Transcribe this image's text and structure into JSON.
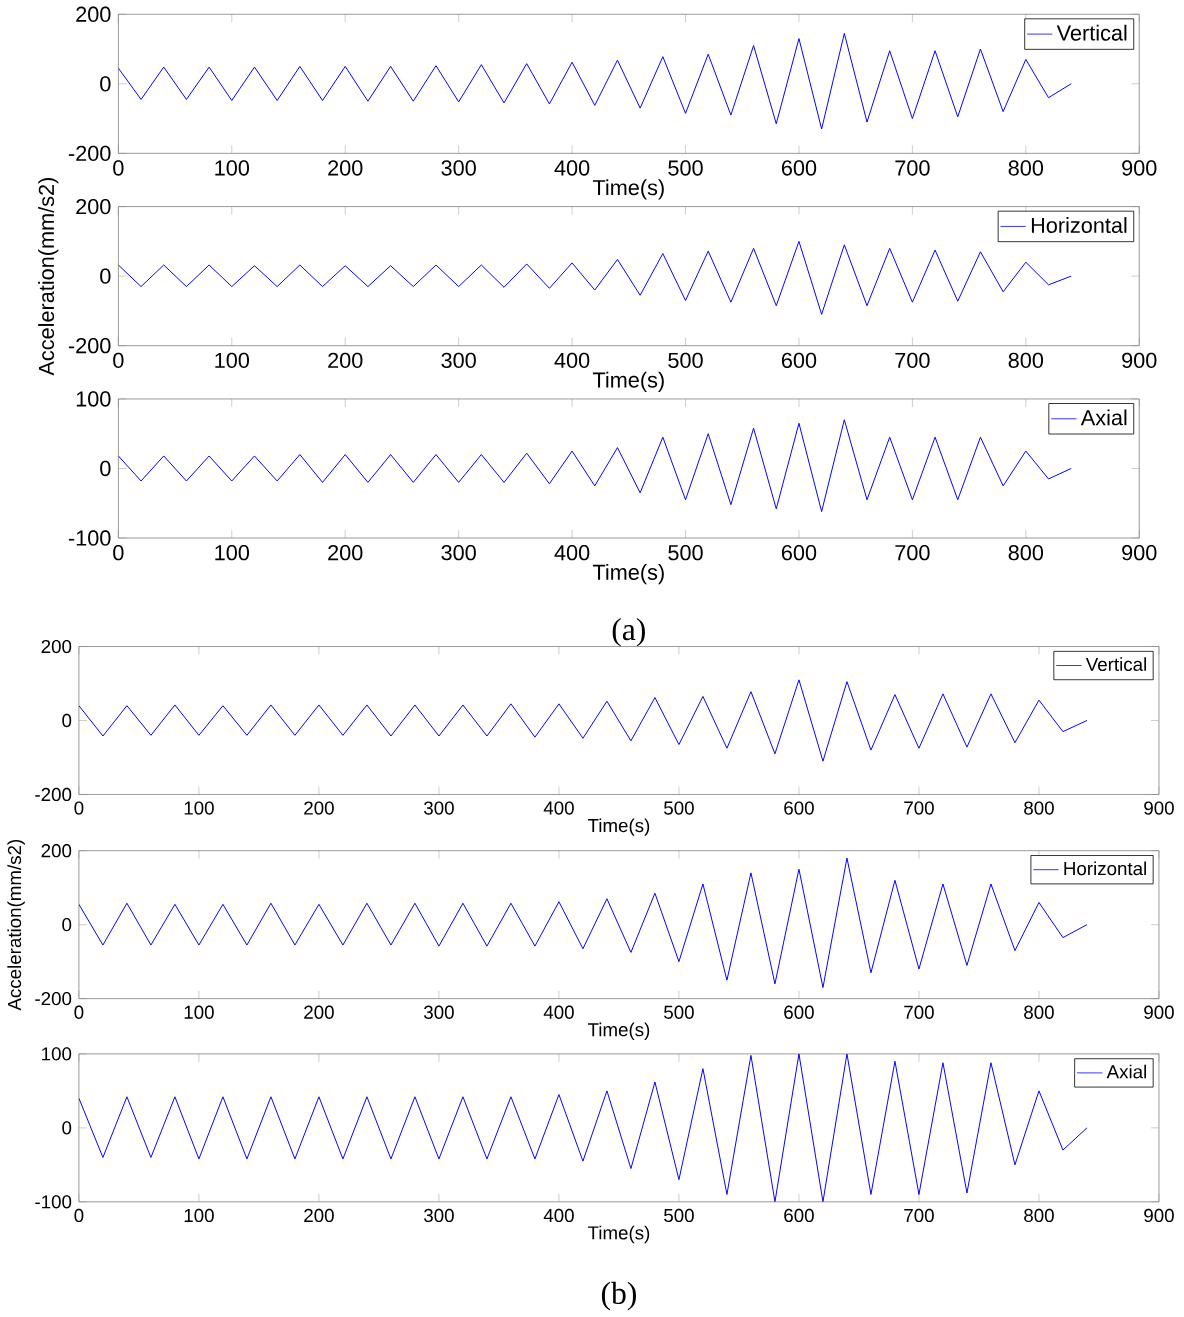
{
  "chart_data": [
    {
      "type": "line",
      "xlabel": "Time(s)",
      "xlim": [
        0,
        900
      ],
      "xticks": [
        0,
        100,
        200,
        300,
        400,
        500,
        600,
        700,
        800,
        900
      ],
      "ylim": [
        -200,
        200
      ],
      "yticks": [
        -200,
        0,
        200
      ],
      "legend": "top right",
      "x": [
        0,
        20,
        40,
        60,
        80,
        100,
        120,
        140,
        160,
        180,
        200,
        220,
        240,
        260,
        280,
        300,
        320,
        340,
        360,
        380,
        400,
        420,
        440,
        460,
        480,
        500,
        520,
        540,
        560,
        580,
        600,
        620,
        640,
        660,
        680,
        700,
        720,
        740,
        760,
        780,
        800,
        820,
        840
      ],
      "series": [
        {
          "name": "Vertical",
          "color": "#0000ff",
          "values": [
            45,
            -45,
            48,
            -45,
            48,
            -48,
            48,
            -48,
            50,
            -48,
            50,
            -50,
            50,
            -50,
            52,
            -52,
            55,
            -55,
            58,
            -58,
            62,
            -62,
            68,
            -70,
            78,
            -85,
            85,
            -90,
            110,
            -115,
            130,
            -130,
            145,
            -110,
            95,
            -100,
            95,
            -95,
            100,
            -80,
            70,
            -40,
            0
          ]
        }
      ]
    },
    {
      "type": "line",
      "xlabel": "Time(s)",
      "ylabel": "Acceleration(mm/s2)",
      "xlim": [
        0,
        900
      ],
      "xticks": [
        0,
        100,
        200,
        300,
        400,
        500,
        600,
        700,
        800,
        900
      ],
      "ylim": [
        -200,
        200
      ],
      "yticks": [
        -200,
        0,
        200
      ],
      "legend": "top right",
      "x": [
        0,
        20,
        40,
        60,
        80,
        100,
        120,
        140,
        160,
        180,
        200,
        220,
        240,
        260,
        280,
        300,
        320,
        340,
        360,
        380,
        400,
        420,
        440,
        460,
        480,
        500,
        520,
        540,
        560,
        580,
        600,
        620,
        640,
        660,
        680,
        700,
        720,
        740,
        760,
        780,
        800,
        820,
        840
      ],
      "series": [
        {
          "name": "Horizontal",
          "color": "#0000ff",
          "values": [
            32,
            -30,
            32,
            -30,
            32,
            -30,
            30,
            -30,
            32,
            -30,
            30,
            -30,
            30,
            -30,
            32,
            -30,
            32,
            -32,
            35,
            -35,
            38,
            -40,
            48,
            -55,
            65,
            -70,
            72,
            -75,
            80,
            -85,
            100,
            -110,
            90,
            -85,
            80,
            -75,
            75,
            -72,
            70,
            -45,
            40,
            -25,
            0
          ]
        }
      ]
    },
    {
      "type": "line",
      "xlabel": "Time(s)",
      "xlim": [
        0,
        900
      ],
      "xticks": [
        0,
        100,
        200,
        300,
        400,
        500,
        600,
        700,
        800,
        900
      ],
      "ylim": [
        -100,
        100
      ],
      "yticks": [
        -100,
        0,
        100
      ],
      "legend": "top right",
      "annotations": [
        "(a)"
      ],
      "x": [
        0,
        20,
        40,
        60,
        80,
        100,
        120,
        140,
        160,
        180,
        200,
        220,
        240,
        260,
        280,
        300,
        320,
        340,
        360,
        380,
        400,
        420,
        440,
        460,
        480,
        500,
        520,
        540,
        560,
        580,
        600,
        620,
        640,
        660,
        680,
        700,
        720,
        740,
        760,
        780,
        800,
        820,
        840
      ],
      "series": [
        {
          "name": "Axial",
          "color": "#0000ff",
          "values": [
            18,
            -18,
            18,
            -18,
            18,
            -18,
            18,
            -18,
            20,
            -20,
            20,
            -20,
            20,
            -20,
            20,
            -20,
            20,
            -20,
            22,
            -22,
            25,
            -25,
            30,
            -35,
            45,
            -45,
            50,
            -52,
            58,
            -58,
            65,
            -62,
            70,
            -45,
            45,
            -45,
            45,
            -45,
            45,
            -25,
            25,
            -15,
            0
          ]
        }
      ]
    },
    {
      "type": "line",
      "xlabel": "Time(s)",
      "xlim": [
        0,
        900
      ],
      "xticks": [
        0,
        100,
        200,
        300,
        400,
        500,
        600,
        700,
        800,
        900
      ],
      "ylim": [
        -200,
        200
      ],
      "yticks": [
        -200,
        0,
        200
      ],
      "legend": "top right",
      "x": [
        0,
        20,
        40,
        60,
        80,
        100,
        120,
        140,
        160,
        180,
        200,
        220,
        240,
        260,
        280,
        300,
        320,
        340,
        360,
        380,
        400,
        420,
        440,
        460,
        480,
        500,
        520,
        540,
        560,
        580,
        600,
        620,
        640,
        660,
        680,
        700,
        720,
        740,
        760,
        780,
        800,
        820,
        840
      ],
      "series": [
        {
          "name": "Vertical",
          "color": "#0000ff",
          "values": [
            40,
            -42,
            40,
            -40,
            42,
            -40,
            40,
            -40,
            42,
            -40,
            42,
            -40,
            42,
            -42,
            42,
            -42,
            42,
            -42,
            45,
            -45,
            45,
            -48,
            52,
            -55,
            62,
            -65,
            65,
            -75,
            78,
            -90,
            110,
            -110,
            105,
            -80,
            70,
            -75,
            72,
            -72,
            72,
            -60,
            55,
            -30,
            0
          ]
        }
      ]
    },
    {
      "type": "line",
      "xlabel": "Time(s)",
      "ylabel": "Acceleration(mm/s2)",
      "xlim": [
        0,
        900
      ],
      "xticks": [
        0,
        100,
        200,
        300,
        400,
        500,
        600,
        700,
        800,
        900
      ],
      "ylim": [
        -200,
        200
      ],
      "yticks": [
        -200,
        0,
        200
      ],
      "legend": "top right",
      "x": [
        0,
        20,
        40,
        60,
        80,
        100,
        120,
        140,
        160,
        180,
        200,
        220,
        240,
        260,
        280,
        300,
        320,
        340,
        360,
        380,
        400,
        420,
        440,
        460,
        480,
        500,
        520,
        540,
        560,
        580,
        600,
        620,
        640,
        660,
        680,
        700,
        720,
        740,
        760,
        780,
        800,
        820,
        840
      ],
      "series": [
        {
          "name": "Horizontal",
          "color": "#0000ff",
          "values": [
            55,
            -55,
            58,
            -55,
            55,
            -55,
            55,
            -55,
            58,
            -55,
            55,
            -55,
            58,
            -55,
            58,
            -58,
            58,
            -58,
            58,
            -58,
            62,
            -65,
            70,
            -75,
            85,
            -100,
            110,
            -150,
            140,
            -160,
            150,
            -170,
            180,
            -130,
            120,
            -120,
            110,
            -110,
            110,
            -70,
            60,
            -35,
            0
          ]
        }
      ]
    },
    {
      "type": "line",
      "xlabel": "Time(s)",
      "xlim": [
        0,
        900
      ],
      "xticks": [
        0,
        100,
        200,
        300,
        400,
        500,
        600,
        700,
        800,
        900
      ],
      "ylim": [
        -100,
        100
      ],
      "yticks": [
        -100,
        0,
        100
      ],
      "legend": "top right",
      "annotations": [
        "(b)"
      ],
      "x": [
        0,
        20,
        40,
        60,
        80,
        100,
        120,
        140,
        160,
        180,
        200,
        220,
        240,
        260,
        280,
        300,
        320,
        340,
        360,
        380,
        400,
        420,
        440,
        460,
        480,
        500,
        520,
        540,
        560,
        580,
        600,
        620,
        640,
        660,
        680,
        700,
        720,
        740,
        760,
        780,
        800,
        820,
        840
      ],
      "series": [
        {
          "name": "Axial",
          "color": "#0000ff",
          "values": [
            40,
            -40,
            42,
            -40,
            42,
            -42,
            42,
            -42,
            42,
            -42,
            42,
            -42,
            42,
            -42,
            42,
            -42,
            42,
            -42,
            42,
            -42,
            45,
            -45,
            50,
            -55,
            62,
            -70,
            80,
            -90,
            98,
            -100,
            100,
            -100,
            100,
            -90,
            90,
            -90,
            88,
            -88,
            88,
            -50,
            50,
            -30,
            0
          ]
        }
      ]
    }
  ]
}
